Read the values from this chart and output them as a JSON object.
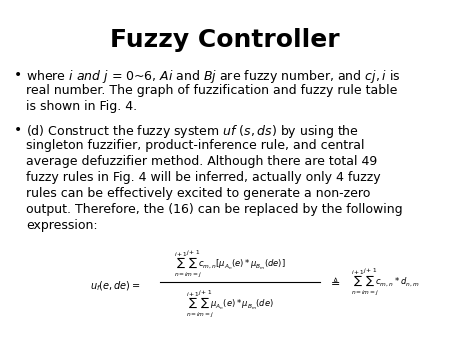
{
  "title": "Fuzzy Controller",
  "title_fontsize": 18,
  "title_fontweight": "bold",
  "background_color": "#ffffff",
  "text_color": "#000000",
  "body_fontsize": 9.0,
  "figsize": [
    4.5,
    3.38
  ],
  "dpi": 100,
  "bullet1_lines": [
    "where $\\it{i}$ $\\it{and}$ $\\it{j}$ = 0~6, $\\it{Ai}$ and $\\it{Bj}$ are fuzzy number, and $\\it{cj,i}$ is",
    "real number. The graph of fuzzification and fuzzy rule table",
    "is shown in Fig. 4."
  ],
  "bullet2_lines": [
    "(d) Construct the fuzzy system $\\it{uf}$ ($\\it{s,ds}$) by using the",
    "singleton fuzzifier, product-inference rule, and central",
    "average defuzzifier method. Although there are total 49",
    "fuzzy rules in Fig. 4 will be inferred, actually only 4 fuzzy",
    "rules can be effectively excited to generate a non-zero",
    "output. Therefore, the (16) can be replaced by the following",
    "expression:"
  ]
}
